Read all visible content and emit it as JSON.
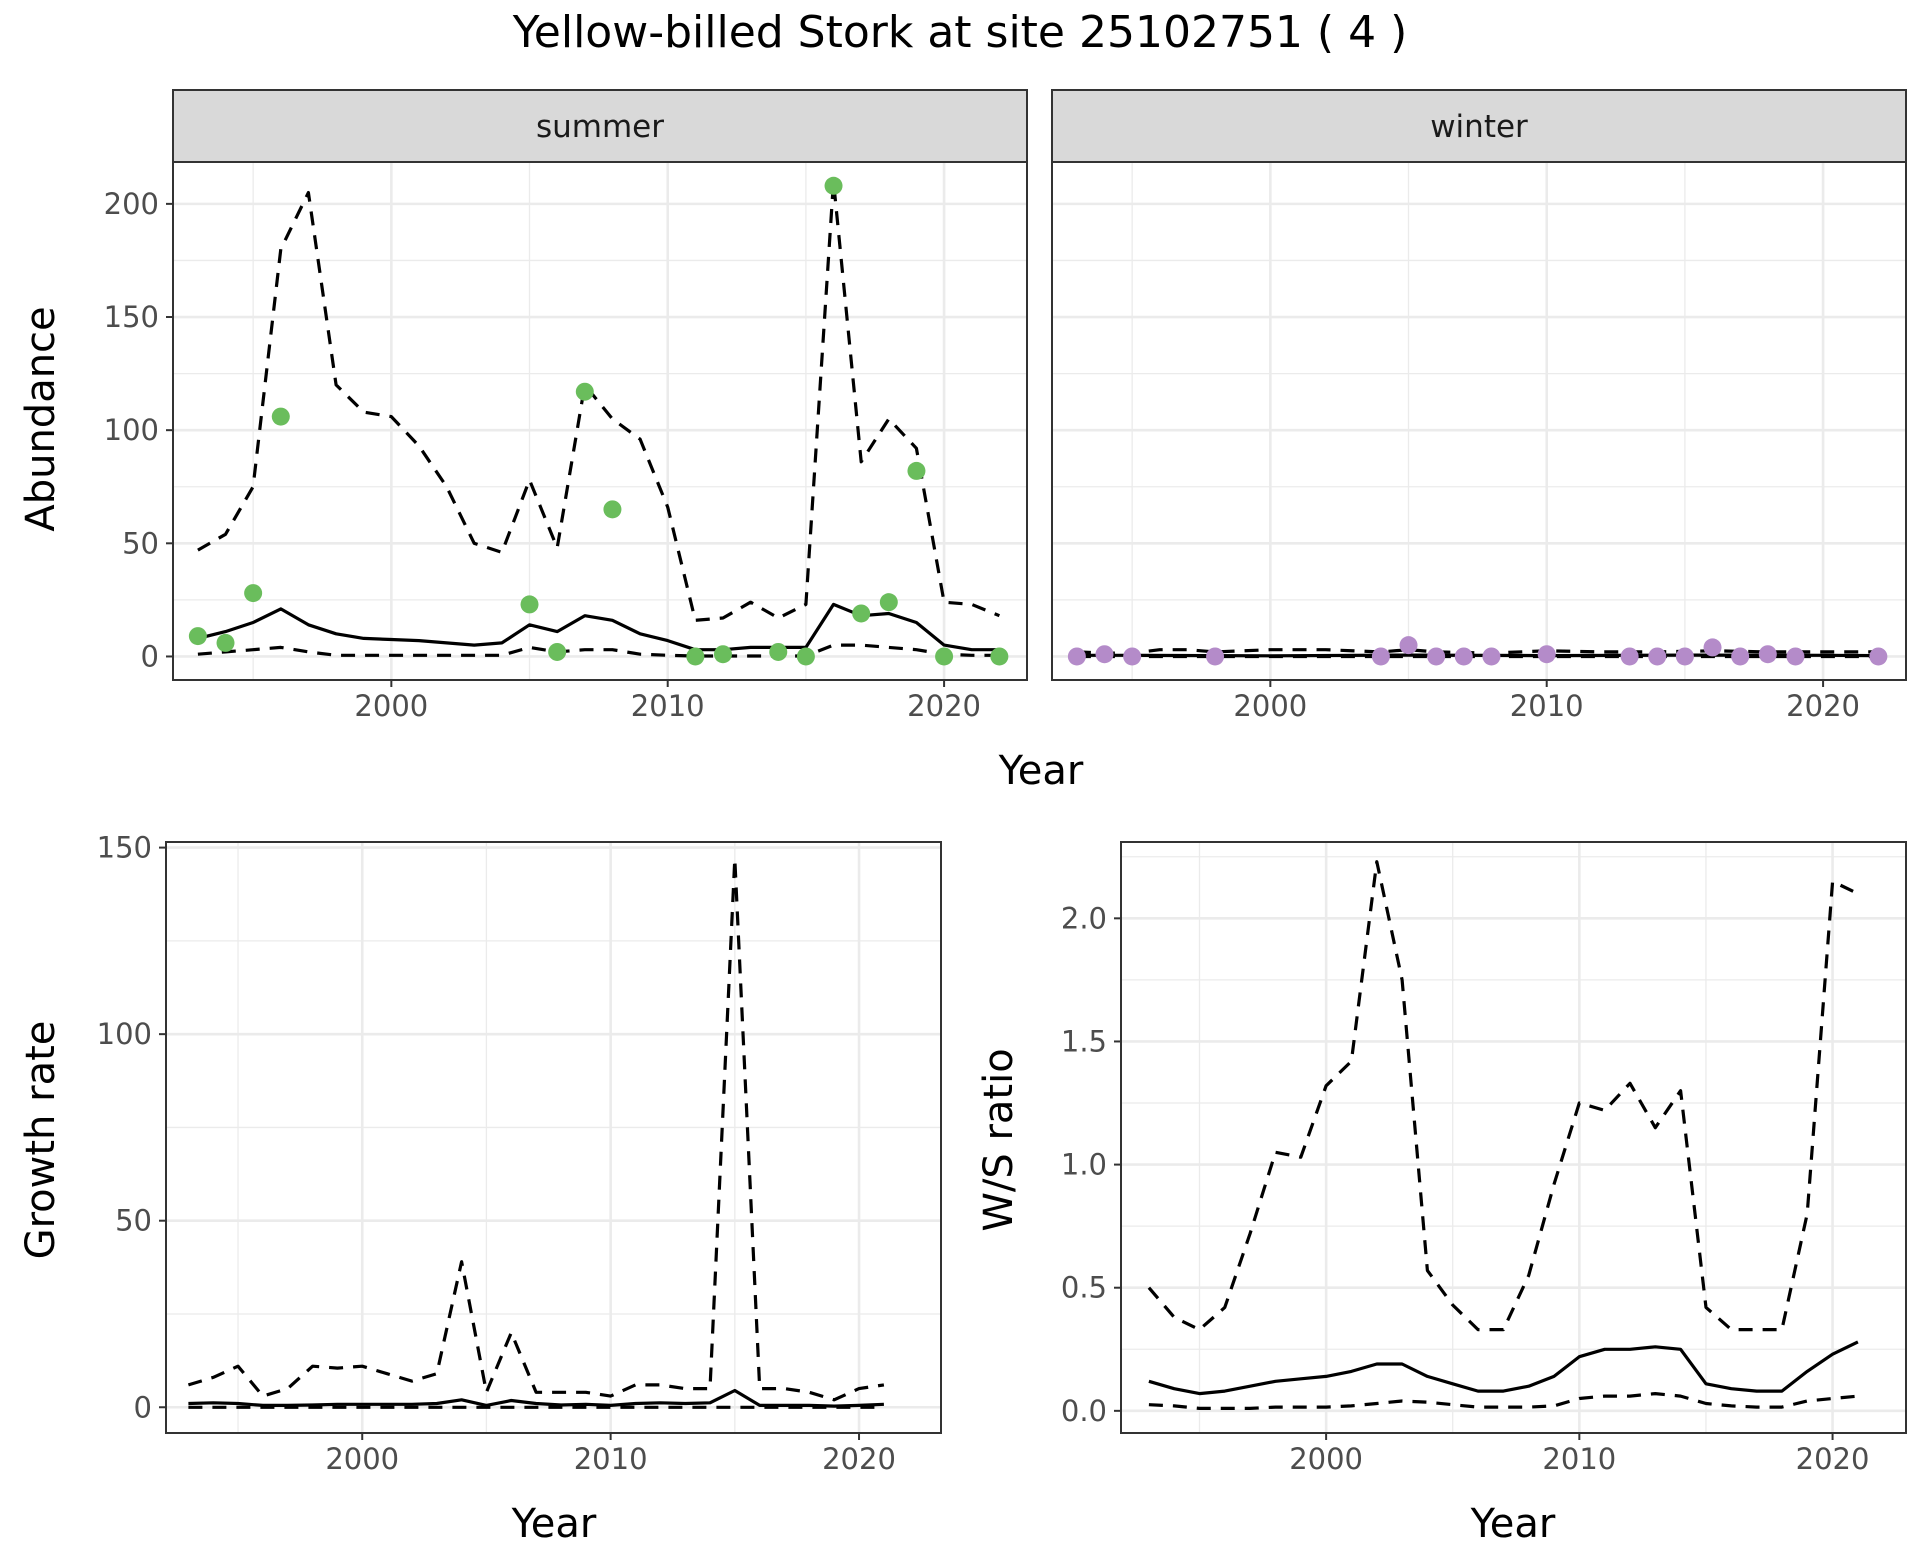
{
  "title": "Yellow-billed Stork at site 25102751 ( 4 )",
  "colors": {
    "summer_points": "#6abd5c",
    "winter_points": "#b48bc9",
    "lines": "#000000",
    "strip_bg": "#d9d9d9"
  },
  "chart_data": [
    {
      "id": "abundance",
      "type": "line",
      "ylabel": "Abundance",
      "xlabel": "Year",
      "xlim": [
        1992.1,
        2023.0
      ],
      "ylim": [
        -10.4,
        218.5
      ],
      "x_ticks": [
        2000,
        2010,
        2020
      ],
      "x_tick_labels": [
        "2000",
        "2010",
        "2020"
      ],
      "y_ticks": [
        0,
        50,
        100,
        150,
        200
      ],
      "y_tick_labels": [
        "0",
        "50",
        "100",
        "150",
        "200"
      ],
      "facets": [
        {
          "name": "summer",
          "points": {
            "x": [
              1993,
              1994,
              1995,
              1996,
              2005,
              2006,
              2007,
              2008,
              2011,
              2012,
              2014,
              2015,
              2016,
              2017,
              2018,
              2019,
              2020,
              2022
            ],
            "y": [
              9,
              6,
              28,
              106,
              23,
              2,
              117,
              65,
              0,
              1,
              2,
              0,
              208,
              19,
              24,
              82,
              0,
              0
            ]
          },
          "series": [
            {
              "role": "estimate",
              "style": "solid",
              "x": [
                1993,
                1994,
                1995,
                1996,
                1997,
                1998,
                1999,
                2000,
                2001,
                2002,
                2003,
                2004,
                2005,
                2006,
                2007,
                2008,
                2009,
                2010,
                2011,
                2012,
                2013,
                2014,
                2015,
                2016,
                2017,
                2018,
                2019,
                2020,
                2021,
                2022
              ],
              "y": [
                8,
                11,
                15,
                21,
                14,
                10,
                8,
                7.5,
                7,
                6,
                5,
                6,
                14,
                11,
                18,
                16,
                10,
                7,
                3,
                3,
                4,
                4,
                4,
                23,
                18,
                19,
                15,
                5,
                3,
                3
              ]
            },
            {
              "role": "upper",
              "style": "dashed",
              "x": [
                1993,
                1994,
                1995,
                1996,
                1997,
                1998,
                1999,
                2000,
                2001,
                2002,
                2003,
                2004,
                2005,
                2006,
                2007,
                2008,
                2009,
                2010,
                2011,
                2012,
                2013,
                2014,
                2015,
                2016,
                2017,
                2018,
                2019,
                2020,
                2021,
                2022
              ],
              "y": [
                47,
                54,
                75,
                180,
                205,
                120,
                108,
                106,
                93,
                75,
                50,
                46,
                78,
                48,
                120,
                105,
                96,
                66,
                16,
                17,
                24,
                17,
                23,
                210,
                86,
                105,
                92,
                24,
                23,
                18
              ]
            },
            {
              "role": "lower",
              "style": "dashed",
              "x": [
                1993,
                1994,
                1995,
                1996,
                1997,
                1998,
                1999,
                2000,
                2001,
                2002,
                2003,
                2004,
                2005,
                2006,
                2007,
                2008,
                2009,
                2010,
                2011,
                2012,
                2013,
                2014,
                2015,
                2016,
                2017,
                2018,
                2019,
                2020,
                2021,
                2022
              ],
              "y": [
                1,
                2,
                3,
                4,
                2,
                0.5,
                0.5,
                0.5,
                0.5,
                0.5,
                0.5,
                0.5,
                4,
                2,
                3,
                3,
                1,
                0.5,
                0.2,
                0.2,
                0.2,
                0.2,
                0.2,
                5,
                5,
                4,
                3,
                1,
                0.5,
                0.5
              ]
            }
          ]
        },
        {
          "name": "winter",
          "points": {
            "x": [
              1993,
              1994,
              1995,
              1998,
              2004,
              2005,
              2006,
              2007,
              2008,
              2010,
              2013,
              2014,
              2015,
              2016,
              2017,
              2018,
              2019,
              2022
            ],
            "y": [
              0,
              1,
              0,
              0,
              0,
              5,
              0,
              0,
              0,
              1,
              0,
              0,
              0,
              4,
              0,
              1,
              0,
              0
            ]
          },
          "series": [
            {
              "role": "estimate",
              "style": "solid",
              "x": [
                1993,
                1995,
                2000,
                2005,
                2010,
                2015,
                2020,
                2022
              ],
              "y": [
                0.5,
                0.5,
                0.3,
                0.6,
                0.4,
                0.6,
                0.5,
                0.4
              ]
            },
            {
              "role": "upper",
              "style": "dashed",
              "x": [
                1993,
                1994,
                1995,
                1996,
                1997,
                1998,
                2000,
                2002,
                2004,
                2005,
                2006,
                2008,
                2010,
                2012,
                2014,
                2016,
                2018,
                2020,
                2022
              ],
              "y": [
                2,
                1.5,
                1.5,
                3,
                3,
                2,
                3,
                3,
                2,
                3,
                2,
                1.5,
                2.5,
                2,
                2,
                2.5,
                2,
                2,
                2
              ]
            },
            {
              "role": "lower",
              "style": "dashed",
              "x": [
                1993,
                2000,
                2010,
                2020,
                2022
              ],
              "y": [
                0,
                0,
                0,
                0,
                0
              ]
            }
          ]
        }
      ]
    },
    {
      "id": "growth",
      "type": "line",
      "ylabel": "Growth rate",
      "xlabel": "Year",
      "xlim": [
        1992.1,
        2023.3
      ],
      "ylim": [
        -6.9,
        151.5
      ],
      "x_ticks": [
        2000,
        2010,
        2020
      ],
      "x_tick_labels": [
        "2000",
        "2010",
        "2020"
      ],
      "y_ticks": [
        0,
        50,
        100,
        150
      ],
      "y_tick_labels": [
        "0",
        "50",
        "100",
        "150"
      ],
      "series": [
        {
          "role": "estimate",
          "style": "solid",
          "x": [
            1993,
            1994,
            1995,
            1996,
            1997,
            1998,
            1999,
            2000,
            2001,
            2002,
            2003,
            2004,
            2005,
            2006,
            2007,
            2008,
            2009,
            2010,
            2011,
            2012,
            2013,
            2014,
            2015,
            2016,
            2017,
            2018,
            2019,
            2020,
            2021
          ],
          "y": [
            1,
            1.2,
            1,
            0.5,
            0.5,
            0.6,
            0.8,
            0.8,
            0.8,
            0.8,
            1,
            2,
            0.5,
            1.8,
            1,
            0.6,
            0.8,
            0.5,
            1,
            1.2,
            1,
            1.2,
            4.5,
            0.5,
            0.5,
            0.5,
            0.3,
            0.5,
            0.8
          ]
        },
        {
          "role": "upper",
          "style": "dashed",
          "x": [
            1993,
            1994,
            1995,
            1996,
            1997,
            1998,
            1999,
            2000,
            2001,
            2002,
            2003,
            2004,
            2005,
            2006,
            2007,
            2008,
            2009,
            2010,
            2011,
            2012,
            2013,
            2014,
            2015,
            2016,
            2017,
            2018,
            2019,
            2020,
            2021
          ],
          "y": [
            6,
            8,
            11,
            3,
            5,
            11,
            10.5,
            11,
            9,
            7,
            9,
            39,
            4,
            20,
            4,
            4,
            4,
            3,
            6,
            6,
            5,
            5,
            147,
            5,
            5,
            4,
            2,
            5,
            6
          ]
        },
        {
          "role": "lower",
          "style": "dashed",
          "x": [
            1993,
            1995,
            2000,
            2005,
            2010,
            2015,
            2021
          ],
          "y": [
            0,
            0,
            0,
            0,
            0,
            0,
            0
          ]
        }
      ]
    },
    {
      "id": "ratio",
      "type": "line",
      "ylabel": "W/S ratio",
      "xlabel": "Year",
      "xlim": [
        1991.9,
        2022.9
      ],
      "ylim": [
        -0.09,
        2.31
      ],
      "x_ticks": [
        2000,
        2010,
        2020
      ],
      "x_tick_labels": [
        "2000",
        "2010",
        "2020"
      ],
      "y_ticks": [
        0.0,
        0.5,
        1.0,
        1.5,
        2.0
      ],
      "y_tick_labels": [
        "0.0",
        "0.5",
        "1.0",
        "1.5",
        "2.0"
      ],
      "series": [
        {
          "role": "estimate",
          "style": "solid",
          "x": [
            1993,
            1994,
            1995,
            1996,
            1997,
            1998,
            1999,
            2000,
            2001,
            2002,
            2003,
            2004,
            2005,
            2006,
            2007,
            2008,
            2009,
            2010,
            2011,
            2012,
            2013,
            2014,
            2015,
            2016,
            2017,
            2018,
            2019,
            2020,
            2021
          ],
          "y": [
            0.12,
            0.09,
            0.07,
            0.08,
            0.1,
            0.12,
            0.13,
            0.14,
            0.16,
            0.19,
            0.19,
            0.14,
            0.11,
            0.08,
            0.08,
            0.1,
            0.14,
            0.22,
            0.25,
            0.25,
            0.26,
            0.25,
            0.11,
            0.09,
            0.08,
            0.08,
            0.16,
            0.23,
            0.28
          ]
        },
        {
          "role": "upper",
          "style": "dashed",
          "x": [
            1993,
            1994,
            1995,
            1996,
            1997,
            1998,
            1999,
            2000,
            2001,
            2002,
            2003,
            2004,
            2005,
            2006,
            2007,
            2008,
            2009,
            2010,
            2011,
            2012,
            2013,
            2014,
            2015,
            2016,
            2017,
            2018,
            2019,
            2020,
            2021
          ],
          "y": [
            0.5,
            0.38,
            0.33,
            0.42,
            0.72,
            1.05,
            1.03,
            1.32,
            1.42,
            2.23,
            1.75,
            0.57,
            0.43,
            0.33,
            0.33,
            0.55,
            0.92,
            1.25,
            1.22,
            1.33,
            1.15,
            1.3,
            0.42,
            0.33,
            0.33,
            0.33,
            0.8,
            2.15,
            2.1
          ]
        },
        {
          "role": "lower",
          "style": "dashed",
          "x": [
            1993,
            1994,
            1995,
            1996,
            1997,
            1998,
            1999,
            2000,
            2001,
            2002,
            2003,
            2004,
            2005,
            2006,
            2007,
            2008,
            2009,
            2010,
            2011,
            2012,
            2013,
            2014,
            2015,
            2016,
            2017,
            2018,
            2019,
            2020,
            2021
          ],
          "y": [
            0.025,
            0.02,
            0.01,
            0.01,
            0.01,
            0.015,
            0.015,
            0.015,
            0.02,
            0.03,
            0.04,
            0.035,
            0.025,
            0.015,
            0.015,
            0.015,
            0.02,
            0.05,
            0.06,
            0.06,
            0.07,
            0.06,
            0.03,
            0.02,
            0.015,
            0.015,
            0.04,
            0.05,
            0.06
          ]
        }
      ]
    }
  ]
}
